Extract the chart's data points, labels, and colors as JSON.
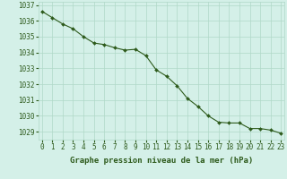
{
  "x": [
    0,
    1,
    2,
    3,
    4,
    5,
    6,
    7,
    8,
    9,
    10,
    11,
    12,
    13,
    14,
    15,
    16,
    17,
    18,
    19,
    20,
    21,
    22,
    23
  ],
  "y": [
    1036.6,
    1036.2,
    1035.8,
    1035.5,
    1035.0,
    1034.6,
    1034.5,
    1034.3,
    1034.15,
    1034.2,
    1033.8,
    1032.9,
    1032.5,
    1031.9,
    1031.1,
    1030.6,
    1030.0,
    1029.6,
    1029.55,
    1029.55,
    1029.2,
    1029.2,
    1029.1,
    1028.9
  ],
  "ylim_min": 1028.5,
  "ylim_max": 1037.2,
  "yticks": [
    1029,
    1030,
    1031,
    1032,
    1033,
    1034,
    1035,
    1036,
    1037
  ],
  "xticks": [
    0,
    1,
    2,
    3,
    4,
    5,
    6,
    7,
    8,
    9,
    10,
    11,
    12,
    13,
    14,
    15,
    16,
    17,
    18,
    19,
    20,
    21,
    22,
    23
  ],
  "xlabel": "Graphe pression niveau de la mer (hPa)",
  "line_color": "#2d5a1b",
  "marker_color": "#2d5a1b",
  "bg_color": "#d4f0e8",
  "plot_bg_color": "#d4f0e8",
  "grid_color": "#b0d8c8",
  "tick_fontsize": 5.5,
  "xlabel_fontsize": 6.5
}
